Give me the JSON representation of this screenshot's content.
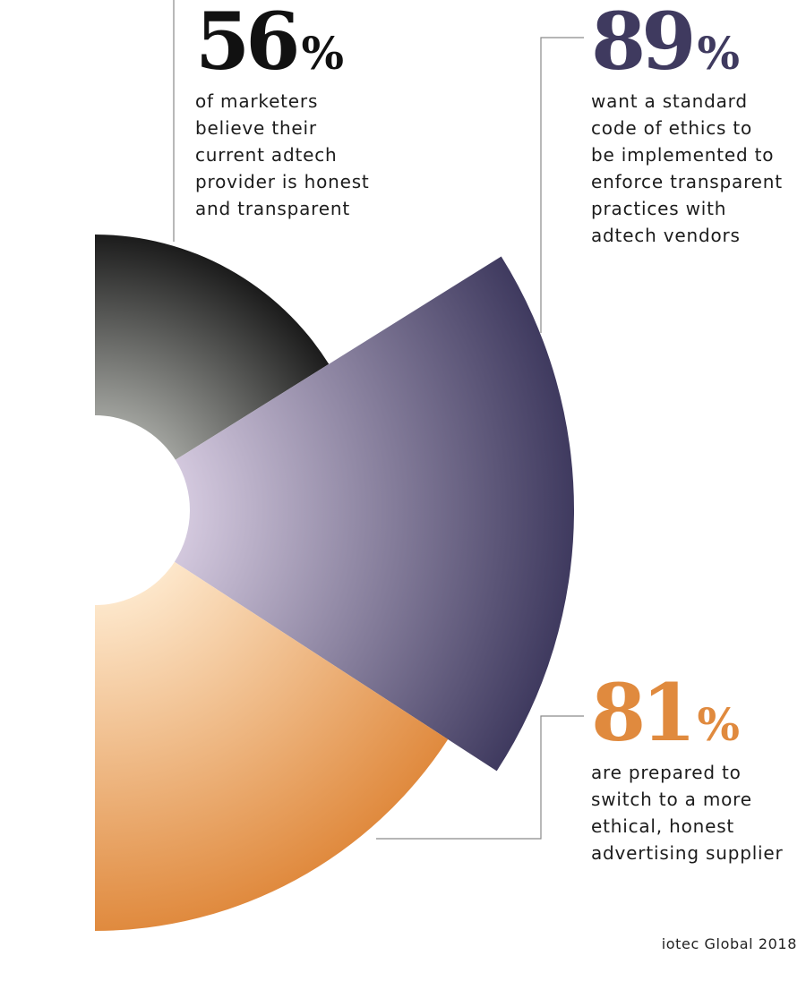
{
  "chart_data": {
    "type": "pie",
    "series": [
      {
        "value": "56",
        "unit": "%",
        "description": "of marketers\nbelieve their\ncurrent adtech\nprovider is honest\nand transparent",
        "color_start": "#a8aaa5",
        "color_end": "#1a1a1a"
      },
      {
        "value": "89",
        "unit": "%",
        "description": "want a standard\ncode of ethics to\nbe implemented to\nenforce transparent\npractices with\nadtech vendors",
        "color_start": "#d6cbe0",
        "color_end": "#3f3a5f"
      },
      {
        "value": "81",
        "unit": "%",
        "description": "are prepared to\nswitch to a more\nethical, honest\nadvertising supplier",
        "color_start": "#fde7cb",
        "color_end": "#e08a3e"
      }
    ],
    "source": "iotec Global 2018"
  }
}
